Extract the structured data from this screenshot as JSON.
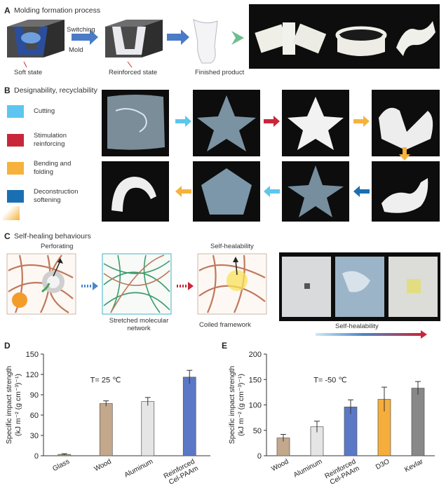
{
  "panelA": {
    "label": "A",
    "title": "Molding formation process",
    "switching": "Switching",
    "mold": "Mold",
    "soft_state": "Soft state",
    "reinforced_state": "Reinforced state",
    "finished_product": "Finished product"
  },
  "panelB": {
    "label": "B",
    "title": "Designability, recyclability",
    "legend": [
      {
        "text": "Cutting",
        "color": "#5cc6ee"
      },
      {
        "text": "Stimulation reinforcing",
        "color": "#c9263a"
      },
      {
        "text": "Bending and folding",
        "color": "#f6b23b"
      },
      {
        "text": "Deconstruction softening",
        "color": "#1a6fb3"
      }
    ]
  },
  "panelC": {
    "label": "C",
    "title": "Self-healing behaviours",
    "perforating": "Perforating",
    "self_healability_top": "Self-healability",
    "stretched": "Stretched molecular network",
    "coiled": "Coiled framework",
    "self_healability_bottom": "Self-healability"
  },
  "chart_data": [
    {
      "type": "bar",
      "panel": "D",
      "annotation": "T= 25 ℃",
      "ylabel": "Specific impact strength (kJ m⁻² (g cm⁻³)⁻¹)",
      "ylim": [
        0,
        150
      ],
      "yticks": [
        0,
        30,
        60,
        90,
        120,
        150
      ],
      "categories": [
        "Glass",
        "Wood",
        "Aluminum",
        "Reinforced Cel-PAAm"
      ],
      "values": [
        2,
        77,
        80,
        116
      ],
      "errors": [
        1,
        4,
        6,
        10
      ],
      "colors": [
        "#b8a06a",
        "#c4a88c",
        "#e5e5e5",
        "#5b78c6"
      ]
    },
    {
      "type": "bar",
      "panel": "E",
      "annotation": "T= -50 ℃",
      "ylabel": "Specific impact strength (kJ m⁻² (g cm⁻³)⁻¹)",
      "ylim": [
        0,
        200
      ],
      "yticks": [
        0,
        50,
        100,
        150,
        200
      ],
      "categories": [
        "Wood",
        "Aluminum",
        "Reinforced Cel-PAAm",
        "D3O",
        "Kevlar"
      ],
      "values": [
        35,
        57,
        96,
        111,
        133
      ],
      "errors": [
        7,
        11,
        14,
        24,
        13
      ],
      "colors": [
        "#c4a88c",
        "#e5e5e5",
        "#5b78c6",
        "#f5ae3c",
        "#888888"
      ]
    }
  ]
}
